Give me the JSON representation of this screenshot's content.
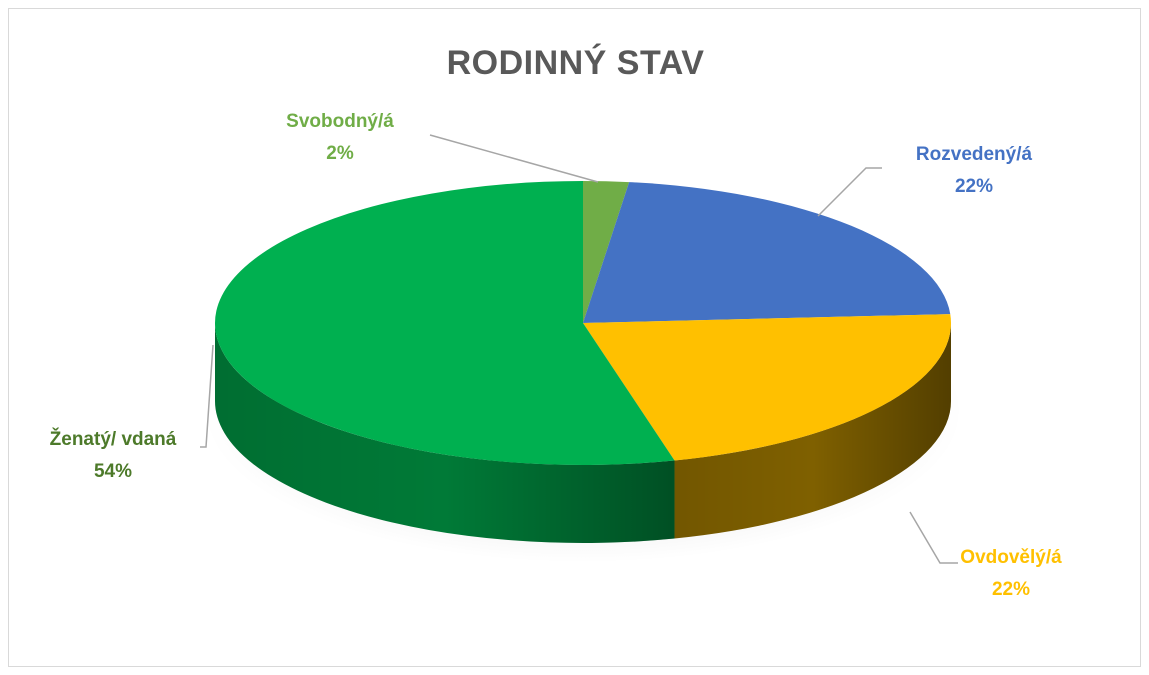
{
  "chart_data": {
    "type": "pie",
    "title": "RODINNÝ STAV",
    "slices": [
      {
        "name": "Svobodný/á",
        "value": 2,
        "label": "2%",
        "color": "#70ad47",
        "dark": "#4c7a30",
        "label_color": "#70ad47"
      },
      {
        "name": "Rozvedený/á",
        "value": 22,
        "label": "22%",
        "color": "#4472c4",
        "dark": "#2f5597",
        "label_color": "#4472c4"
      },
      {
        "name": "Ovdovělý/á",
        "value": 22,
        "label": "22%",
        "color": "#ffc000",
        "dark": "#7f6000",
        "label_color": "#ffc000"
      },
      {
        "name": "Ženatý/ vdaná",
        "value": 54,
        "label": "54%",
        "color": "#00b050",
        "dark": "#007a37",
        "label_color": "#4d7a2a"
      }
    ],
    "legend": "none",
    "style": "3d-pie"
  }
}
